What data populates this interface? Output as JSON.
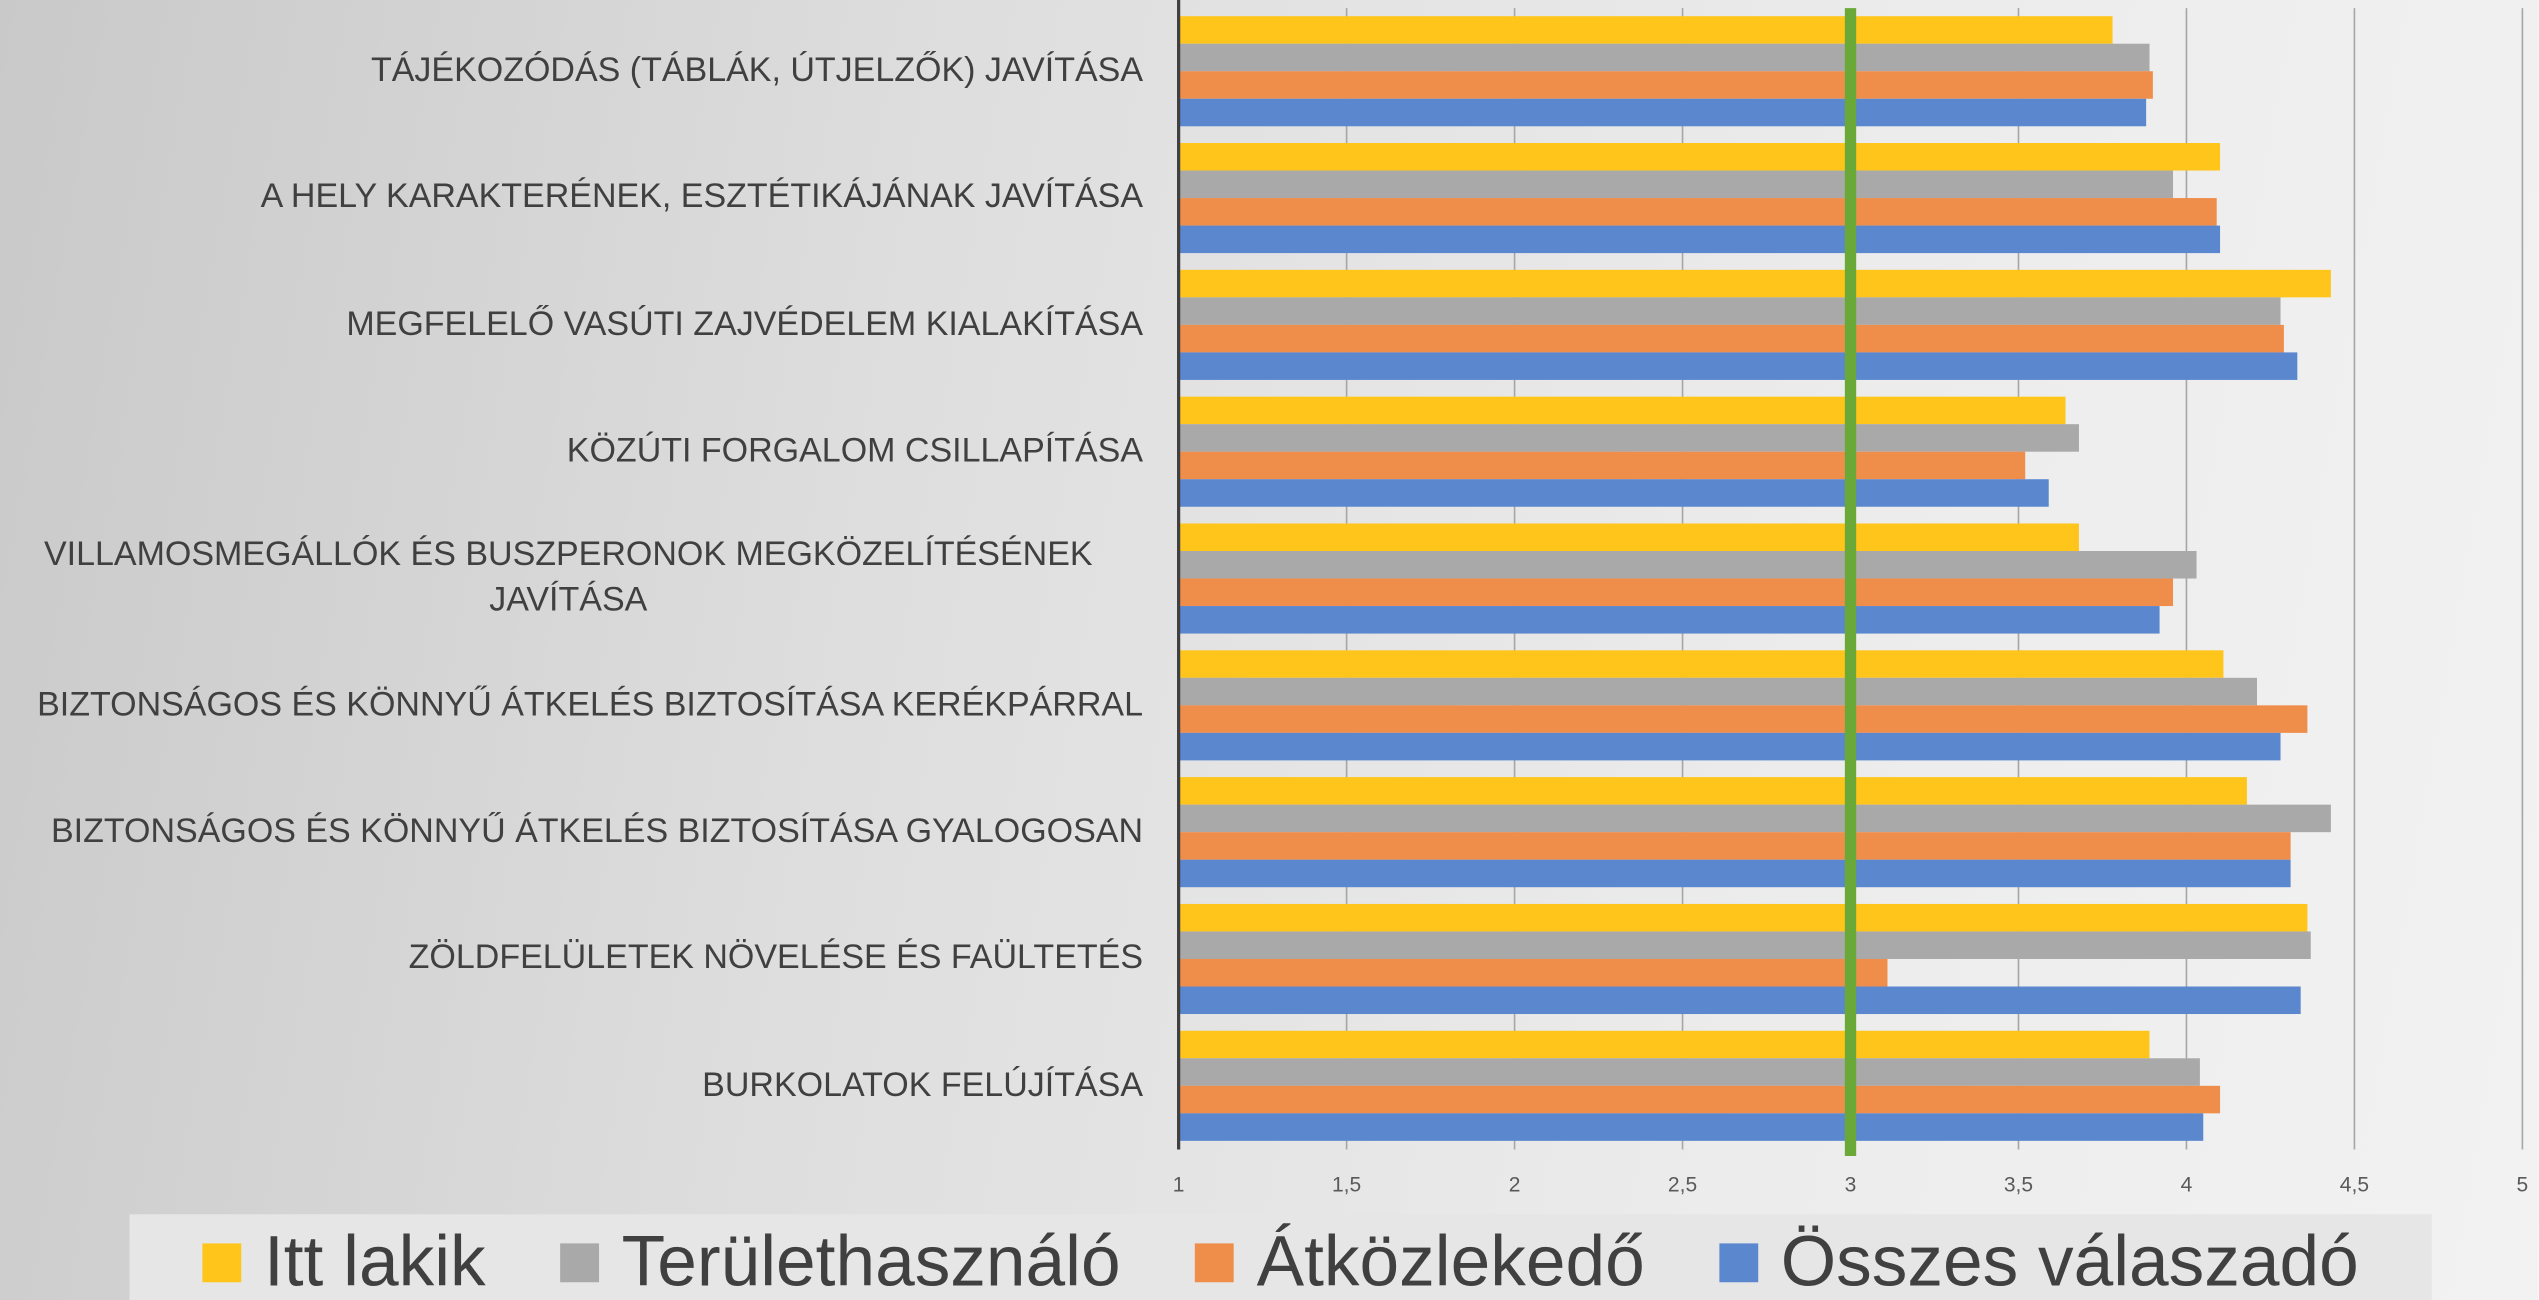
{
  "chart_data": {
    "type": "hbar",
    "categories": [
      "TÁJÉKOZÓDÁS (TÁBLÁK, ÚTJELZŐK) JAVÍTÁSA",
      "A HELY KARAKTERÉNEK, ESZTÉTIKÁJÁNAK JAVÍTÁSA",
      "MEGFELELŐ VASÚTI ZAJVÉDELEM KIALAKÍTÁSA",
      "KÖZÚTI FORGALOM CSILLAPÍTÁSA",
      "VILLAMOSMEGÁLLÓK ÉS BUSZPERONOK MEGKÖZELÍTÉSÉNEK JAVÍTÁSA",
      "BIZTONSÁGOS ÉS KÖNNYŰ ÁTKELÉS BIZTOSÍTÁSA KERÉKPÁRRAL",
      "BIZTONSÁGOS ÉS KÖNNYŰ ÁTKELÉS BIZTOSÍTÁSA GYALOGOSAN",
      "ZÖLDFELÜLETEK NÖVELÉSE ÉS FAÜLTETÉS",
      "BURKOLATOK FELÚJÍTÁSA"
    ],
    "series": [
      {
        "name": "Itt lakik",
        "color": "#ffc51a",
        "values": [
          3.78,
          4.1,
          4.43,
          3.64,
          3.68,
          4.11,
          4.18,
          4.36,
          3.89
        ]
      },
      {
        "name": "Területhasználó",
        "color": "#a9a9a9",
        "values": [
          3.89,
          3.96,
          4.28,
          3.68,
          4.03,
          4.21,
          4.43,
          4.37,
          4.04
        ]
      },
      {
        "name": "Átközlekedő",
        "color": "#ef8d4b",
        "values": [
          3.9,
          4.09,
          4.29,
          3.52,
          3.96,
          4.36,
          4.31,
          3.11,
          4.1
        ]
      },
      {
        "name": "Összes válaszadó",
        "color": "#5b87cf",
        "values": [
          3.88,
          4.1,
          4.33,
          3.59,
          3.92,
          4.28,
          4.31,
          4.34,
          4.05
        ]
      }
    ],
    "xlim": [
      1,
      5
    ],
    "xticks": [
      1,
      {
        "value": 1.5,
        "label": "1,5"
      },
      2,
      {
        "value": 2.5,
        "label": "2,5"
      },
      3,
      {
        "value": 3.5,
        "label": "3,5"
      },
      4,
      {
        "value": 4.5,
        "label": "4,5"
      },
      5
    ],
    "grid": true,
    "reference_line": {
      "value": 3,
      "color": "#6aa838"
    },
    "legend": "bottom"
  }
}
